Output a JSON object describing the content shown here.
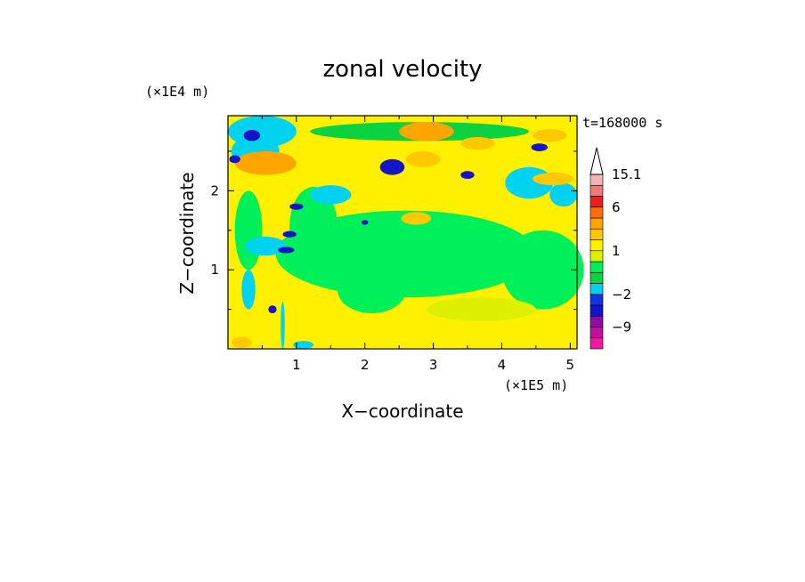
{
  "chart_data": {
    "type": "heatmap",
    "title": "zonal velocity",
    "xlabel": "X−coordinate",
    "ylabel": "Z−coordinate",
    "x_unit": "(×1E5 m)",
    "y_unit": "(×1E4 m)",
    "time_label": "t=168000 s",
    "xlim": [
      0,
      5.1
    ],
    "ylim": [
      0,
      2.95
    ],
    "x_ticks": [
      1,
      2,
      3,
      4,
      5
    ],
    "y_ticks": [
      1,
      2
    ],
    "colorbar": {
      "levels": [
        {
          "max": -12,
          "color": "#ee1aa0"
        },
        {
          "max": -9,
          "color": "#c010a0"
        },
        {
          "max": -6,
          "color": "#8c10a0"
        },
        {
          "max": -4,
          "color": "#1414c8"
        },
        {
          "max": -2,
          "color": "#1432e6"
        },
        {
          "max": -1,
          "color": "#00d2f0"
        },
        {
          "max": 0,
          "color": "#0ad240"
        },
        {
          "max": 0.5,
          "color": "#00f05a"
        },
        {
          "max": 1,
          "color": "#dcf000"
        },
        {
          "max": 2,
          "color": "#fff000"
        },
        {
          "max": 3,
          "color": "#ffc800"
        },
        {
          "max": 4,
          "color": "#ffa500"
        },
        {
          "max": 6,
          "color": "#ff6e00"
        },
        {
          "max": 9,
          "color": "#ee1e1e"
        },
        {
          "max": 12,
          "color": "#f07878"
        },
        {
          "max": 15.1,
          "color": "#f5b4b4"
        }
      ],
      "tick_labels": [
        "15.1",
        "6",
        "1",
        "−2",
        "−9"
      ]
    },
    "regions": [
      {
        "x": 2.6,
        "z": 1.2,
        "rx": 1.9,
        "rz": 0.55,
        "v": 0.2
      },
      {
        "x": 4.6,
        "z": 1.0,
        "rx": 0.6,
        "rz": 0.5,
        "v": 0.2
      },
      {
        "x": 2.1,
        "z": 0.75,
        "rx": 0.5,
        "rz": 0.3,
        "v": 0.2
      },
      {
        "x": 3.7,
        "z": 0.5,
        "rx": 0.8,
        "rz": 0.15,
        "v": 0.8
      },
      {
        "x": 2.8,
        "z": 2.75,
        "rx": 1.6,
        "rz": 0.12,
        "v": -0.5
      },
      {
        "x": 1.25,
        "z": 1.55,
        "rx": 0.35,
        "rz": 0.5,
        "v": 0.2
      },
      {
        "x": 0.3,
        "z": 1.5,
        "rx": 0.2,
        "rz": 0.5,
        "v": 0.2
      },
      {
        "x": 0.4,
        "z": 2.5,
        "rx": 0.35,
        "rz": 0.2,
        "v": -1.5
      },
      {
        "x": 4.4,
        "z": 2.1,
        "rx": 0.35,
        "rz": 0.2,
        "v": -1.5
      },
      {
        "x": 0.55,
        "z": 1.3,
        "rx": 0.3,
        "rz": 0.12,
        "v": -1.5
      },
      {
        "x": 4.9,
        "z": 1.95,
        "rx": 0.2,
        "rz": 0.15,
        "v": -1.5
      },
      {
        "x": 1.5,
        "z": 1.95,
        "rx": 0.3,
        "rz": 0.12,
        "v": -1.5
      },
      {
        "x": 0.3,
        "z": 0.75,
        "rx": 0.1,
        "rz": 0.25,
        "v": -1.5
      },
      {
        "x": 0.5,
        "z": 2.75,
        "rx": 0.5,
        "rz": 0.2,
        "v": -1.5
      },
      {
        "x": 2.85,
        "z": 2.4,
        "rx": 0.25,
        "rz": 0.1,
        "v": 3
      },
      {
        "x": 2.9,
        "z": 2.75,
        "rx": 0.4,
        "rz": 0.12,
        "v": 3.5
      },
      {
        "x": 0.55,
        "z": 2.35,
        "rx": 0.45,
        "rz": 0.15,
        "v": 3.5
      },
      {
        "x": 3.65,
        "z": 2.6,
        "rx": 0.25,
        "rz": 0.08,
        "v": 3
      },
      {
        "x": 2.75,
        "z": 1.65,
        "rx": 0.22,
        "rz": 0.08,
        "v": 3
      },
      {
        "x": 4.75,
        "z": 2.15,
        "rx": 0.3,
        "rz": 0.08,
        "v": 3
      },
      {
        "x": 4.7,
        "z": 2.7,
        "rx": 0.25,
        "rz": 0.08,
        "v": 3
      },
      {
        "x": 0.35,
        "z": 2.7,
        "rx": 0.12,
        "rz": 0.07,
        "v": -5
      },
      {
        "x": 2.4,
        "z": 2.3,
        "rx": 0.18,
        "rz": 0.1,
        "v": -5
      },
      {
        "x": 3.5,
        "z": 2.2,
        "rx": 0.1,
        "rz": 0.05,
        "v": -5
      },
      {
        "x": 4.55,
        "z": 2.55,
        "rx": 0.12,
        "rz": 0.05,
        "v": -5
      },
      {
        "x": 0.9,
        "z": 1.45,
        "rx": 0.1,
        "rz": 0.04,
        "v": -5
      },
      {
        "x": 0.1,
        "z": 2.4,
        "rx": 0.08,
        "rz": 0.05,
        "v": -5
      },
      {
        "x": 1.0,
        "z": 1.8,
        "rx": 0.1,
        "rz": 0.04,
        "v": -5
      },
      {
        "x": 2.0,
        "z": 1.6,
        "rx": 0.05,
        "rz": 0.03,
        "v": -5
      },
      {
        "x": 0.85,
        "z": 1.25,
        "rx": 0.12,
        "rz": 0.04,
        "v": -5
      },
      {
        "x": 0.65,
        "z": 0.5,
        "rx": 0.06,
        "rz": 0.05,
        "v": -5
      },
      {
        "x": 0.75,
        "z": 0.25,
        "rx": 0.12,
        "rz": 0.15,
        "v": 1.5
      },
      {
        "x": 0.8,
        "z": 0.3,
        "rx": 0.03,
        "rz": 0.3,
        "v": -1.5
      },
      {
        "x": 1.1,
        "z": 0.05,
        "rx": 0.15,
        "rz": 0.05,
        "v": -1.5
      },
      {
        "x": 0.2,
        "z": 0.08,
        "rx": 0.15,
        "rz": 0.07,
        "v": 3
      }
    ]
  }
}
